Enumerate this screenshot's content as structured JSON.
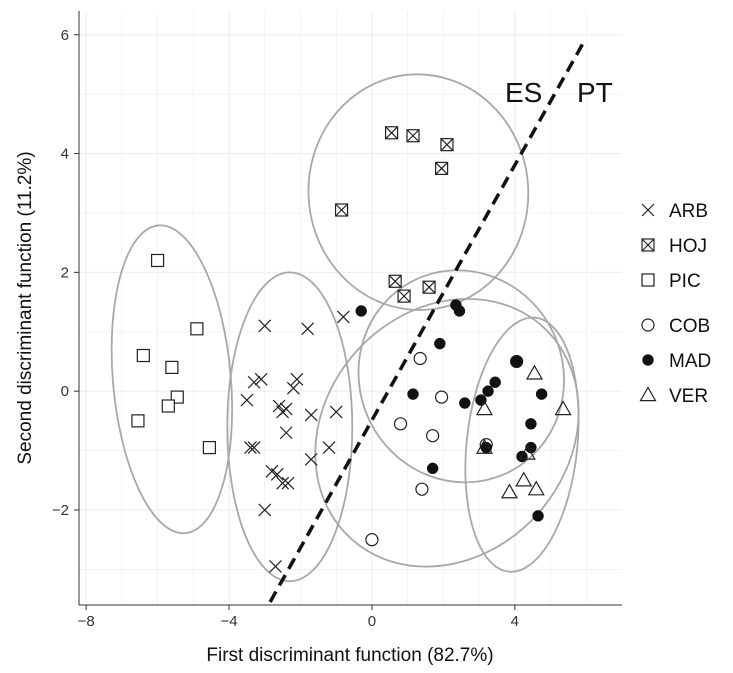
{
  "chart_data": {
    "type": "scatter",
    "title": "",
    "xlabel": "First discriminant function (82.7%)",
    "ylabel": "Second discriminant function (11.2%)",
    "xlim": [
      -8.2,
      7.0
    ],
    "ylim": [
      -3.6,
      6.4
    ],
    "xticks": [
      -8,
      -4,
      0,
      4
    ],
    "xtick_labels": [
      "−8",
      "−4",
      "0",
      "4"
    ],
    "yticks": [
      -2,
      0,
      2,
      4,
      6
    ],
    "ytick_labels": [
      "−2",
      "0",
      "2",
      "4",
      "6"
    ],
    "grid": true,
    "legend_position": "right",
    "series": [
      {
        "name": "ARB",
        "marker": "x",
        "points": [
          [
            -3,
            1.1
          ],
          [
            -1.8,
            1.05
          ],
          [
            -0.8,
            1.25
          ],
          [
            -2.1,
            0.2
          ],
          [
            -3.1,
            0.2
          ],
          [
            -3.3,
            0.15
          ],
          [
            -2.2,
            0.05
          ],
          [
            -3.5,
            -0.15
          ],
          [
            -2.6,
            -0.25
          ],
          [
            -2.4,
            -0.3
          ],
          [
            -2.5,
            -0.35
          ],
          [
            -1.7,
            -0.4
          ],
          [
            -1.0,
            -0.35
          ],
          [
            -3.4,
            -0.95
          ],
          [
            -3.3,
            -0.95
          ],
          [
            -2.4,
            -0.7
          ],
          [
            -1.7,
            -1.15
          ],
          [
            -1.2,
            -0.95
          ],
          [
            -2.8,
            -1.35
          ],
          [
            -2.65,
            -1.4
          ],
          [
            -2.5,
            -1.55
          ],
          [
            -2.35,
            -1.55
          ],
          [
            -3.0,
            -2.0
          ],
          [
            -2.7,
            -2.95
          ]
        ]
      },
      {
        "name": "HOJ",
        "marker": "boxed-x",
        "points": [
          [
            0.55,
            4.35
          ],
          [
            1.15,
            4.3
          ],
          [
            2.1,
            4.15
          ],
          [
            1.95,
            3.75
          ],
          [
            -0.85,
            3.05
          ],
          [
            0.65,
            1.85
          ],
          [
            1.6,
            1.75
          ],
          [
            0.9,
            1.6
          ]
        ]
      },
      {
        "name": "PIC",
        "marker": "square",
        "points": [
          [
            -6.0,
            2.2
          ],
          [
            -4.9,
            1.05
          ],
          [
            -6.4,
            0.6
          ],
          [
            -5.6,
            0.4
          ],
          [
            -5.45,
            -0.1
          ],
          [
            -5.7,
            -0.25
          ],
          [
            -6.55,
            -0.5
          ],
          [
            -4.55,
            -0.95
          ]
        ]
      },
      {
        "name": "COB",
        "marker": "circle",
        "points": [
          [
            1.35,
            0.55
          ],
          [
            1.95,
            -0.1
          ],
          [
            0.8,
            -0.55
          ],
          [
            1.7,
            -0.75
          ],
          [
            1.4,
            -1.65
          ],
          [
            0.0,
            -2.5
          ],
          [
            3.2,
            -0.9
          ],
          [
            4.05,
            0.5
          ]
        ]
      },
      {
        "name": "MAD",
        "marker": "filled-circle",
        "points": [
          [
            -0.3,
            1.35
          ],
          [
            2.35,
            1.45
          ],
          [
            2.45,
            1.35
          ],
          [
            1.9,
            0.8
          ],
          [
            4.05,
            0.5
          ],
          [
            3.45,
            0.15
          ],
          [
            3.25,
            0.0
          ],
          [
            1.15,
            -0.05
          ],
          [
            3.05,
            -0.15
          ],
          [
            2.6,
            -0.2
          ],
          [
            4.75,
            -0.05
          ],
          [
            4.45,
            -0.55
          ],
          [
            3.2,
            -0.95
          ],
          [
            4.45,
            -0.95
          ],
          [
            4.2,
            -1.1
          ],
          [
            1.7,
            -1.3
          ],
          [
            4.65,
            -2.1
          ]
        ]
      },
      {
        "name": "VER",
        "marker": "triangle",
        "points": [
          [
            4.55,
            0.3
          ],
          [
            3.15,
            -0.3
          ],
          [
            5.35,
            -0.3
          ],
          [
            3.15,
            -0.95
          ],
          [
            4.35,
            -1.05
          ],
          [
            4.25,
            -1.5
          ],
          [
            3.85,
            -1.7
          ],
          [
            4.6,
            -1.65
          ]
        ]
      }
    ],
    "ellipses": [
      {
        "group": "PIC",
        "cx": -5.6,
        "cy": 0.2,
        "rx": 1.65,
        "ry": 2.6,
        "angle": 5
      },
      {
        "group": "ARB",
        "cx": -2.3,
        "cy": -0.6,
        "rx": 1.75,
        "ry": 2.6,
        "angle": 0
      },
      {
        "group": "HOJ",
        "cx": 1.3,
        "cy": 3.35,
        "rx": 3.3,
        "ry": 1.85,
        "angle": 94
      },
      {
        "group": "COB",
        "cx": 2.1,
        "cy": -0.7,
        "rx": 4.0,
        "ry": 2.05,
        "angle": 48
      },
      {
        "group": "MAD",
        "cx": 2.5,
        "cy": 0.25,
        "rx": 2.85,
        "ry": 1.8,
        "angle": 25
      },
      {
        "group": "VER",
        "cx": 4.2,
        "cy": -0.9,
        "rx": 1.55,
        "ry": 2.15,
        "angle": -6
      }
    ],
    "divider": {
      "style": "dashed",
      "from": [
        -2.85,
        -3.55
      ],
      "to": [
        5.95,
        5.9
      ]
    },
    "annotations": [
      "ES",
      "PT"
    ]
  }
}
